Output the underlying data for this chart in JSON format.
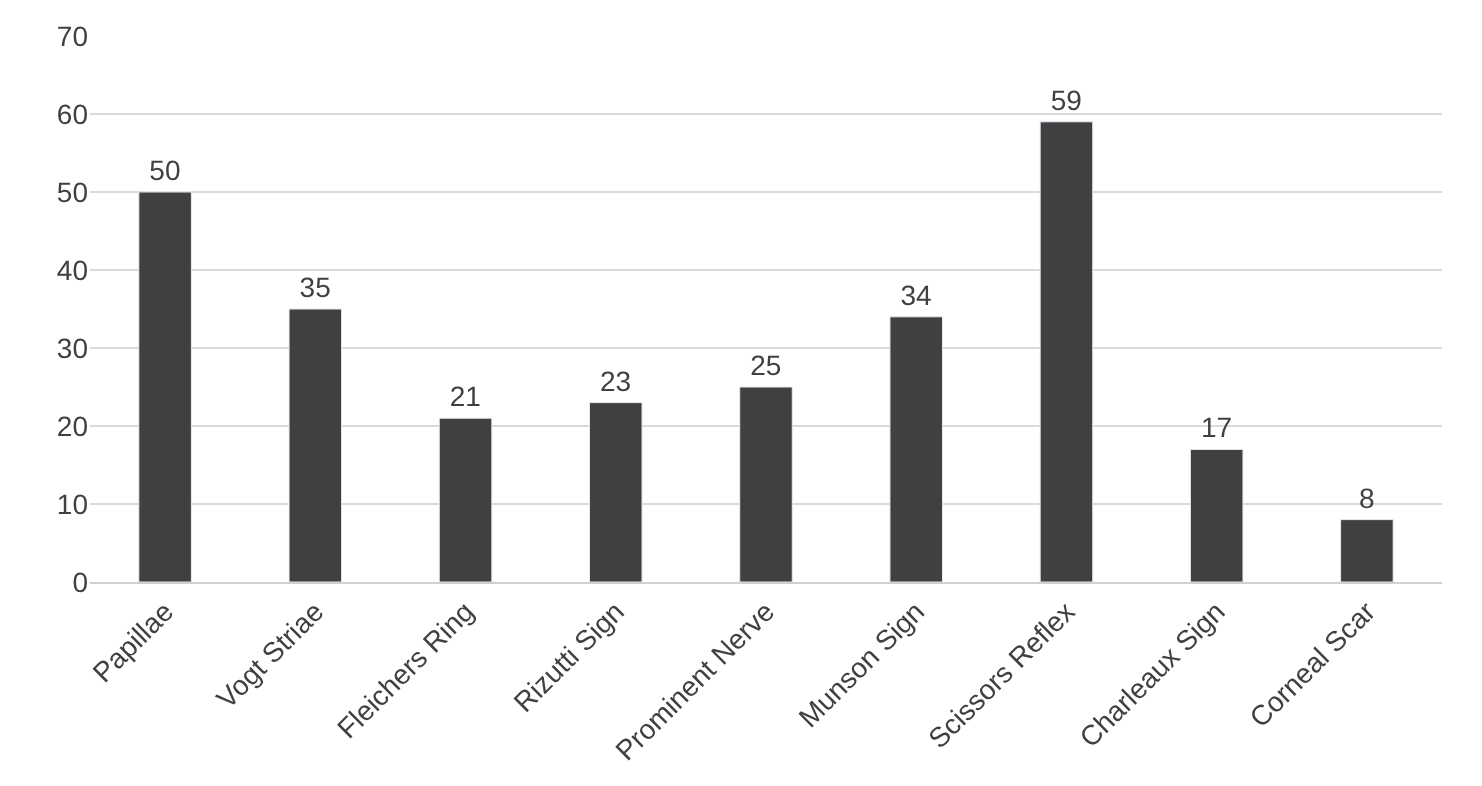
{
  "chart_data": {
    "type": "bar",
    "categories": [
      "Papillae",
      "Vogt Striae",
      "Fleichers Ring",
      "Rizutti Sign",
      "Prominent Nerve",
      "Munson Sign",
      "Scissors Reflex",
      "Charleaux Sign",
      "Corneal Scar"
    ],
    "values": [
      50,
      35,
      21,
      23,
      25,
      34,
      59,
      17,
      8
    ],
    "color": "#404040",
    "ylim": [
      0,
      70
    ],
    "yticks": [
      0,
      10,
      20,
      30,
      40,
      50,
      60,
      70
    ],
    "grid": "y",
    "data_labels": true,
    "legend": false
  }
}
